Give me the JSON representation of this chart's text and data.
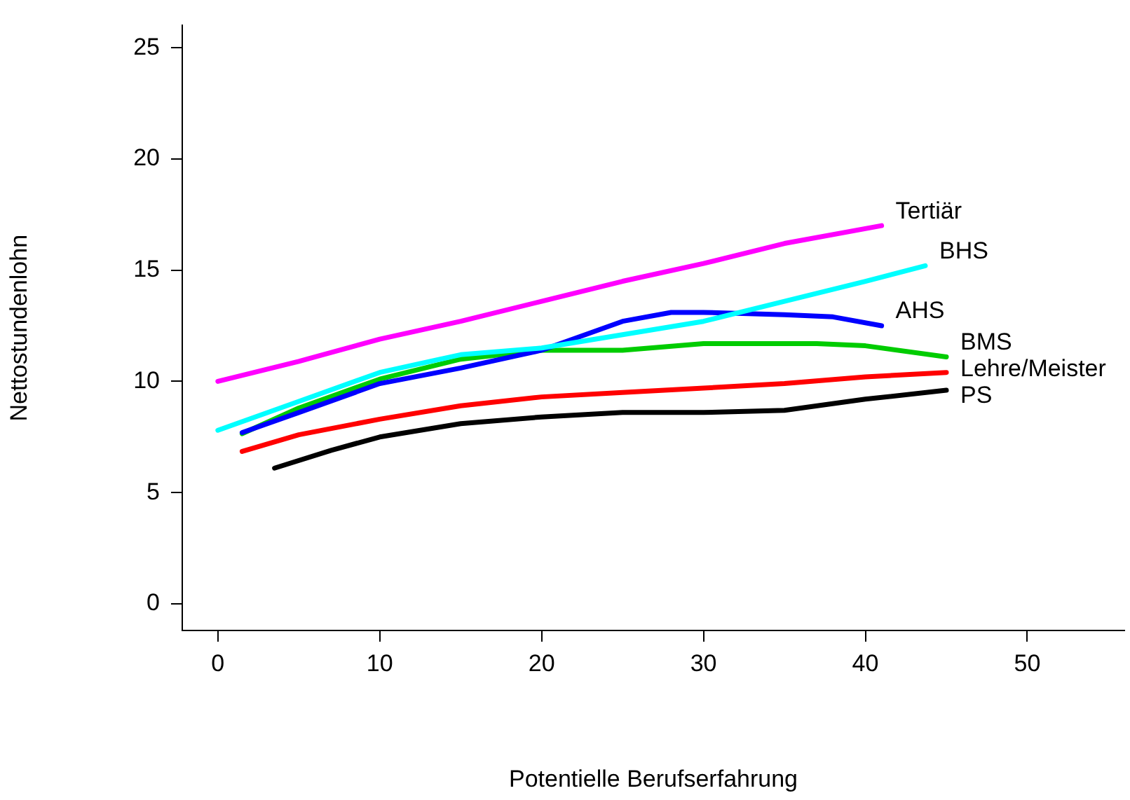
{
  "chart_data": {
    "type": "line",
    "xlabel": "Potentielle Berufserfahrung",
    "ylabel": "Nettostundenlohn",
    "xlim": [
      -2.2,
      56
    ],
    "ylim": [
      -1.2,
      26
    ],
    "xticks": [
      0,
      10,
      20,
      30,
      40,
      50
    ],
    "yticks": [
      0,
      5,
      10,
      15,
      20,
      25
    ],
    "grid": false,
    "legend": false,
    "marker": "none",
    "line_style": "solid",
    "series": [
      {
        "name": "Tertiär",
        "color": "#ff00ff",
        "x": [
          0,
          5,
          10,
          15,
          20,
          25,
          30,
          35,
          41
        ],
        "values": [
          10.0,
          10.9,
          11.9,
          12.7,
          13.6,
          14.5,
          15.3,
          16.2,
          17.0
        ]
      },
      {
        "name": "BHS",
        "color": "#00ffff",
        "x": [
          0,
          5,
          10,
          15,
          20,
          25,
          30,
          35,
          40,
          43.7
        ],
        "values": [
          7.8,
          9.1,
          10.4,
          11.2,
          11.5,
          12.1,
          12.7,
          13.6,
          14.5,
          15.2
        ]
      },
      {
        "name": "AHS",
        "color": "#0000ff",
        "x": [
          1.5,
          5,
          10,
          15,
          20,
          25,
          28,
          30,
          35,
          38,
          41
        ],
        "values": [
          7.7,
          8.6,
          9.9,
          10.6,
          11.4,
          12.7,
          13.1,
          13.1,
          13.0,
          12.9,
          12.5
        ]
      },
      {
        "name": "BMS",
        "color": "#00cc00",
        "x": [
          1.5,
          5,
          10,
          15,
          20,
          25,
          30,
          35,
          37,
          40,
          45
        ],
        "values": [
          7.65,
          8.8,
          10.1,
          11.0,
          11.4,
          11.4,
          11.7,
          11.7,
          11.7,
          11.6,
          11.1
        ]
      },
      {
        "name": "Lehre/Meister",
        "color": "#ff0000",
        "x": [
          1.5,
          5,
          10,
          15,
          20,
          25,
          30,
          35,
          40,
          45
        ],
        "values": [
          6.85,
          7.6,
          8.3,
          8.9,
          9.3,
          9.5,
          9.7,
          9.9,
          10.2,
          10.4
        ]
      },
      {
        "name": "PS",
        "color": "#000000",
        "x": [
          3.5,
          7,
          10,
          15,
          20,
          25,
          30,
          35,
          40,
          45
        ],
        "values": [
          6.1,
          6.9,
          7.5,
          8.1,
          8.4,
          8.6,
          8.6,
          8.7,
          9.2,
          9.6
        ]
      }
    ]
  }
}
